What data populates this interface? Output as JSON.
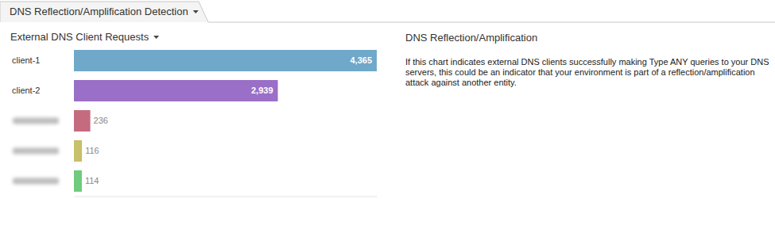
{
  "page": {
    "tab": "DNS Reflection/Amplification Detection",
    "panel_title": "DNS Reflection/Amplification",
    "panel_text": "If this chart indicates external DNS clients successfully making Type ANY queries to your DNS servers, this could be an indicator that your environment is part of a reflection/amplification attack against another entity."
  },
  "chart_data": {
    "type": "bar",
    "title": "External DNS Client Requests",
    "orientation": "horizontal",
    "categories": [
      "client-1",
      "client-2",
      null,
      null,
      null
    ],
    "values": [
      4365,
      2939,
      236,
      116,
      114
    ],
    "value_labels": [
      "4,365",
      "2,939",
      "236",
      "116",
      "114"
    ],
    "colors": [
      "#6fa8c9",
      "#9a6fc7",
      "#c56b80",
      "#c8c06a",
      "#6fcb7e"
    ],
    "xlim": [
      0,
      4365
    ],
    "data_labels": true,
    "tick_labels": "y"
  }
}
